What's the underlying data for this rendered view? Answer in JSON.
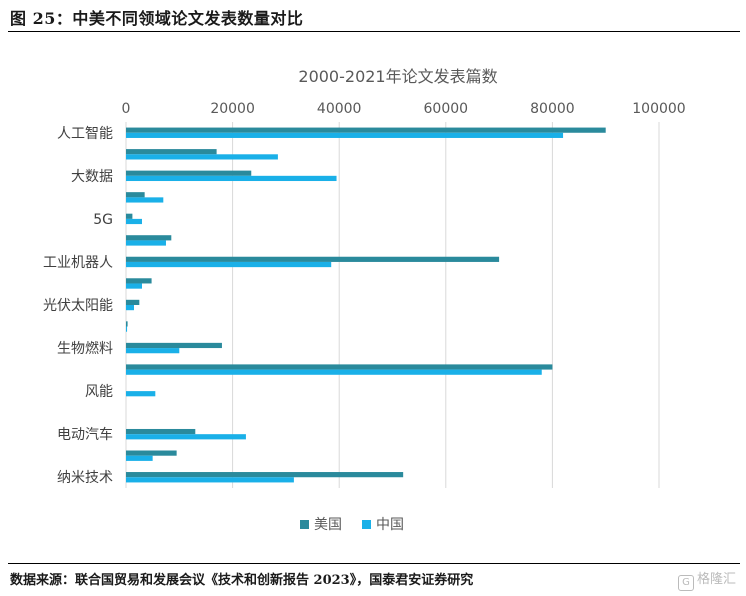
{
  "header": {
    "figure_title": "图 25：中美不同领域论文发表数量对比"
  },
  "footer": {
    "source": "数据来源：联合国贸易和发展会议《技术和创新报告 2023》，国泰君安证券研究",
    "watermark": "格隆汇"
  },
  "chart_data": {
    "type": "bar",
    "orientation": "horizontal",
    "title": "2000-2021年论文发表篇数",
    "xlim": [
      0,
      100000
    ],
    "xticks": [
      0,
      20000,
      40000,
      60000,
      80000,
      100000
    ],
    "x_axis_position": "top",
    "grid": true,
    "legend_position": "bottom",
    "categories": [
      "人工智能",
      "",
      "大数据",
      "",
      "5G",
      "",
      "工业机器人",
      "",
      "光伏太阳能",
      "",
      "生物燃料",
      "",
      "风能",
      "",
      "电动汽车",
      "",
      "纳米技术"
    ],
    "series": [
      {
        "name": "美国",
        "color": "#2a8a9c",
        "values": [
          90000,
          17000,
          23500,
          3500,
          1200,
          8500,
          70000,
          4800,
          2500,
          300,
          18000,
          80000,
          0,
          0,
          13000,
          9500,
          52000
        ]
      },
      {
        "name": "中国",
        "color": "#1ab0e8",
        "values": [
          82000,
          28500,
          39500,
          7000,
          3000,
          7500,
          38500,
          3000,
          1500,
          200,
          10000,
          78000,
          5500,
          0,
          22500,
          5000,
          31500
        ]
      }
    ]
  }
}
